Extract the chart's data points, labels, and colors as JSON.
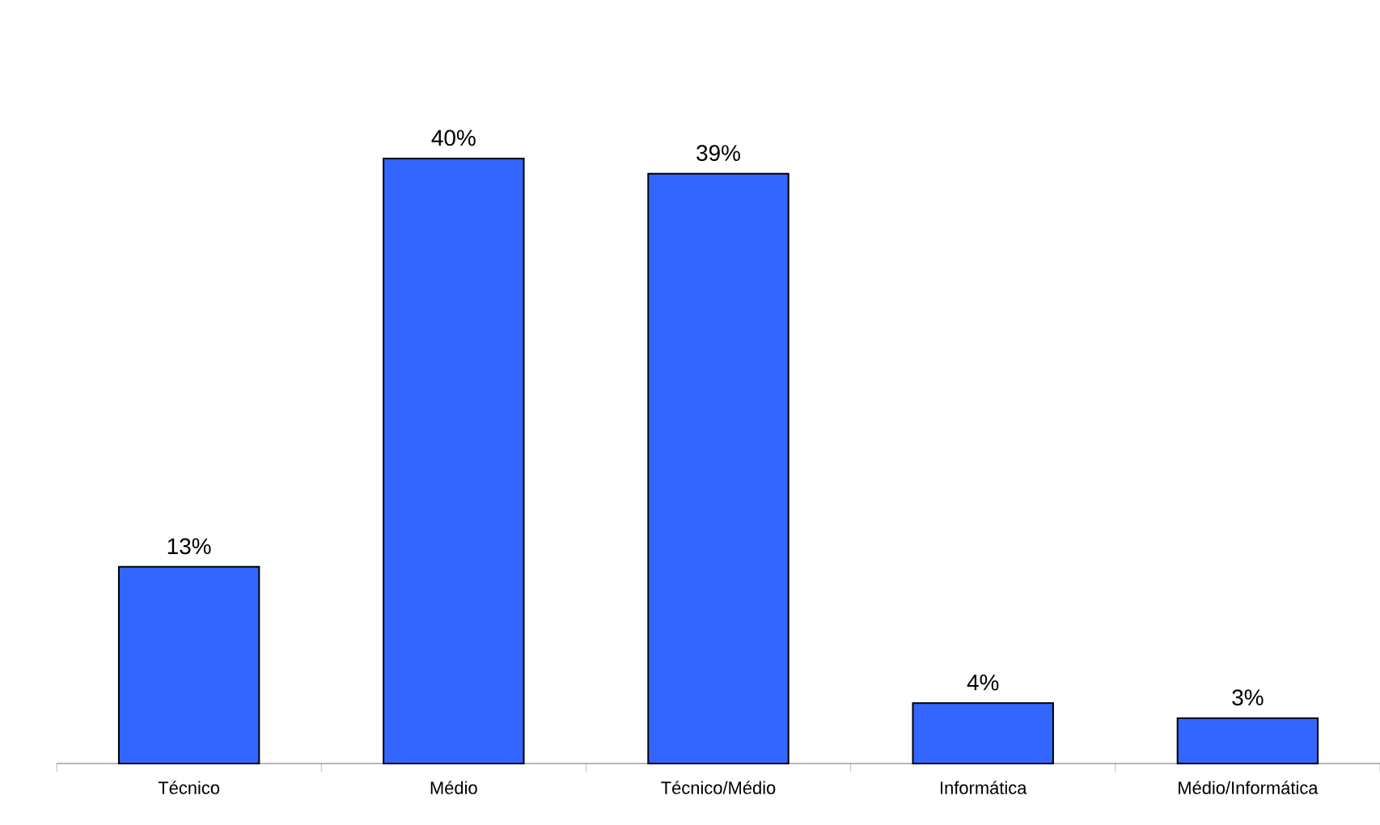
{
  "chart_data": {
    "type": "bar",
    "categories": [
      "Técnico",
      "Médio",
      "Técnico/Médio",
      "Informática",
      "Médio/Informática"
    ],
    "values": [
      13,
      40,
      39,
      4,
      3
    ],
    "value_labels": [
      "13%",
      "40%",
      "39%",
      "4%",
      "3%"
    ],
    "color": "#3366ff"
  }
}
